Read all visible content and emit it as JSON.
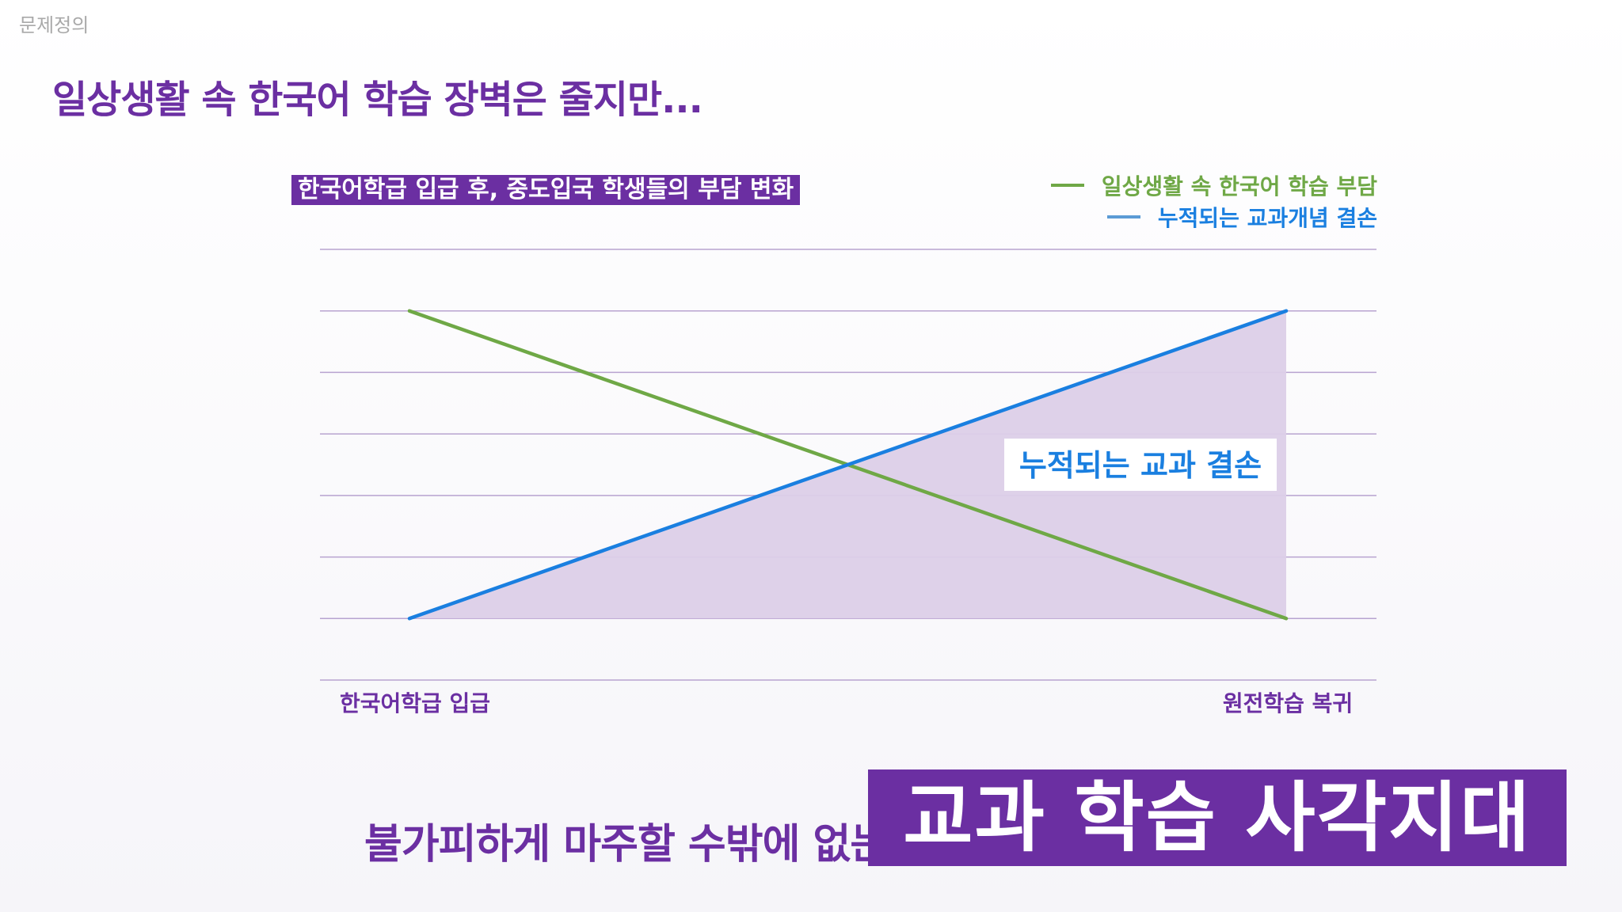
{
  "section_label": "문제정의",
  "headline": "일상생활 속 한국어 학습 장벽은 줄지만...",
  "bottom": {
    "lead_text": "불가피하게 마주할 수밖에 없는",
    "highlight_text": "교과 학습 사각지대"
  },
  "colors": {
    "brand_purple": "#6b2fa2",
    "green_series": "#6fa846",
    "blue_series": "#1a7fe0",
    "area_fill": "#dccfe8",
    "grid": "#b8a3d0"
  },
  "chart_data": {
    "type": "line",
    "title": "한국어학급 입급 후, 중도입국 학생들의 부담 변화",
    "categories": [
      "한국어학급 입급",
      "원전학습 복귀"
    ],
    "series": [
      {
        "name": "일상생활 속 한국어 학습 부담",
        "values": [
          5,
          0
        ],
        "color": "#6fa846"
      },
      {
        "name": "누적되는 교과개념 결손",
        "values": [
          0,
          5
        ],
        "color": "#1a7fe0",
        "filled_area": true
      }
    ],
    "ylim": [
      -1,
      6
    ],
    "grid": true,
    "legend_position": "top-right",
    "annotations": [
      {
        "text": "누적되는 교과 결손",
        "series": "누적되는 교과개념 결손"
      }
    ]
  }
}
